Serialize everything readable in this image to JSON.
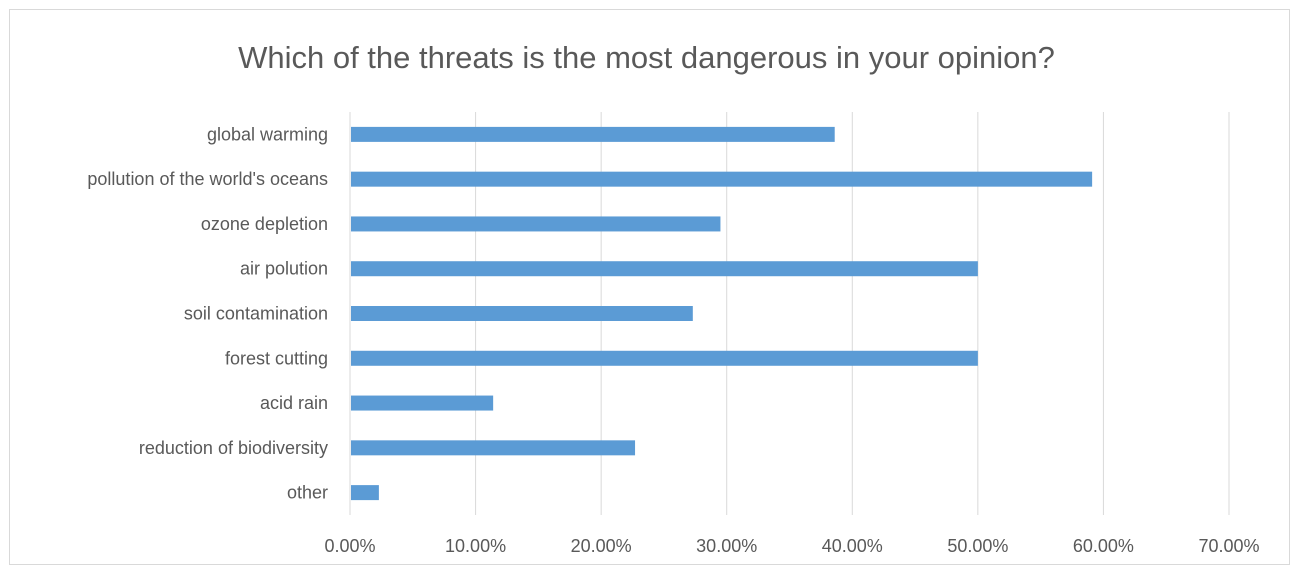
{
  "chart_data": {
    "type": "bar",
    "orientation": "horizontal",
    "title": "Which of the threats is the most dangerous in your opinion?",
    "categories": [
      "global warming",
      "pollution of the world's oceans",
      "ozone depletion",
      "air polution ",
      "soil contamination",
      "forest cutting",
      "acid rain",
      "reduction of biodiversity",
      "other"
    ],
    "values": [
      38.6,
      59.1,
      29.5,
      50.0,
      27.3,
      50.0,
      11.4,
      22.7,
      2.3
    ],
    "xlim": [
      0,
      70
    ],
    "ticks": [
      "0.00%",
      "10.00%",
      "20.00%",
      "30.00%",
      "40.00%",
      "50.00%",
      "60.00%",
      "70.00%"
    ],
    "tick_values": [
      0,
      10,
      20,
      30,
      40,
      50,
      60,
      70
    ],
    "grid": true,
    "legend": "none",
    "colors": {
      "bar": "#5b9bd5",
      "grid": "#d9d9d9",
      "text": "#595959"
    }
  }
}
